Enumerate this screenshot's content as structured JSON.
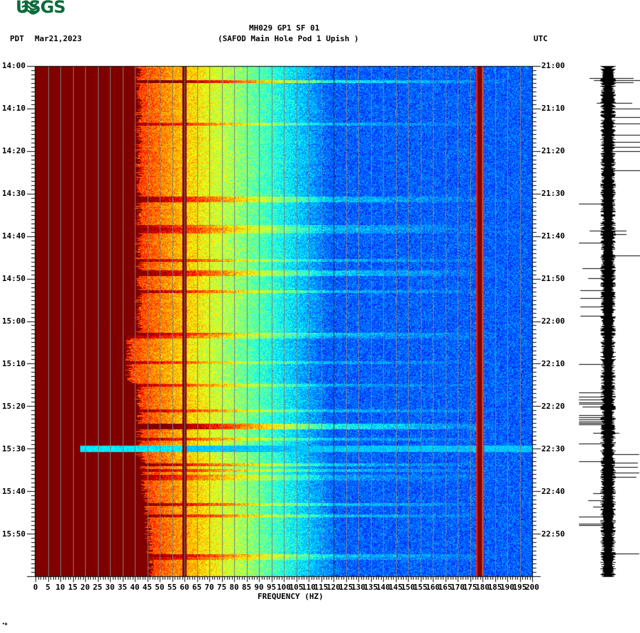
{
  "header": {
    "logo_text": "USGS",
    "title_line1": "MH029 GP1 SF 01",
    "title_line2": "(SAFOD Main Hole Pod 1 Upish )",
    "timezone_left": "PDT",
    "date": "Mar21,2023",
    "timezone_right": "UTC"
  },
  "footer": {
    "mark": "•ʜ"
  },
  "colors": {
    "logo_green": "#0b6b3a",
    "dark_red": "#800000",
    "grid_gray": "#808080"
  },
  "chart_data": {
    "type": "heatmap",
    "title": "MH029 GP1 SF 01 (SAFOD Main Hole Pod 1 Upish )",
    "xlabel": "FREQUENCY (HZ)",
    "ylabel_left": "PDT",
    "ylabel_right": "UTC",
    "xlim": [
      0,
      200
    ],
    "x_ticks": [
      "0",
      "5",
      "10",
      "15",
      "20",
      "25",
      "30",
      "35",
      "40",
      "45",
      "50",
      "55",
      "60",
      "65",
      "70",
      "75",
      "80",
      "85",
      "90",
      "95",
      "100",
      "105",
      "110",
      "115",
      "120",
      "125",
      "130",
      "135",
      "140",
      "145",
      "150",
      "155",
      "160",
      "165",
      "170",
      "175",
      "180",
      "185",
      "190",
      "195",
      "200"
    ],
    "y_ticks_left": [
      "14:00",
      "14:10",
      "14:20",
      "14:30",
      "14:40",
      "14:50",
      "15:00",
      "15:10",
      "15:20",
      "15:30",
      "15:40",
      "15:50"
    ],
    "y_ticks_right": [
      "21:00",
      "21:10",
      "21:20",
      "21:30",
      "21:40",
      "21:50",
      "22:00",
      "22:10",
      "22:20",
      "22:30",
      "22:40",
      "22:50"
    ],
    "grid": "vertical lines every 5 Hz",
    "colormap": "jet (blue low, dark red high)",
    "features": [
      {
        "desc": "saturated dark-red energy 0-40 Hz across entire record"
      },
      {
        "desc": "high energy (red/yellow) 40-70 Hz, decaying toward 100 Hz"
      },
      {
        "desc": "persistent narrow line at 60 Hz",
        "freq_hz": 60
      },
      {
        "desc": "thin line at 120 Hz",
        "freq_hz": 120
      },
      {
        "desc": "strong narrow line near 180 Hz",
        "freq_hz": 180
      },
      {
        "desc": "broadband event ~14:03 PDT",
        "time": "14:03"
      },
      {
        "desc": "broadband event ~15:25 PDT",
        "time": "15:25"
      },
      {
        "desc": "low-noise (cyan) band ~15:30 PDT extending down to ~18 Hz",
        "time": "15:30"
      }
    ],
    "seismogram": {
      "position": "right of spectrogram",
      "desc": "vertical waveform trace with spikes"
    }
  }
}
